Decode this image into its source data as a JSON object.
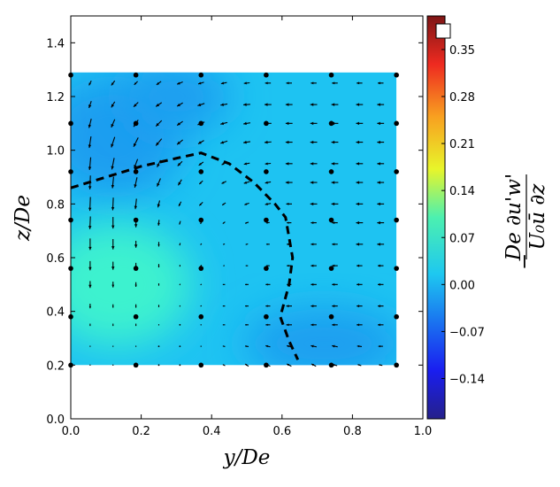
{
  "chart_data": {
    "type": "contour+quiver",
    "xlabel": "y/De",
    "ylabel": "z/De",
    "xlim": [
      0,
      1.0
    ],
    "ylim": [
      0,
      1.5
    ],
    "xticks": [
      "0.0",
      "0.2",
      "0.4",
      "0.6",
      "0.8",
      "1.0"
    ],
    "yticks": [
      "0.0",
      "0.2",
      "0.4",
      "0.6",
      "0.8",
      "1.0",
      "1.2",
      "1.4"
    ],
    "colorbar": {
      "label_numerator": "De ∂u'w'",
      "label_denominator": "U₀ū  ∂z",
      "label_sign": "−",
      "colormap": "jet",
      "clim": [
        -0.2,
        0.4
      ],
      "ticks": [
        "0.35",
        "0.28",
        "0.21",
        "0.14",
        "0.07",
        "0.00",
        "−0.07",
        "−0.14"
      ],
      "tick_values": [
        0.35,
        0.28,
        0.21,
        0.14,
        0.07,
        0.0,
        -0.07,
        -0.14
      ]
    },
    "field_extent": {
      "x": [
        0,
        0.925
      ],
      "z": [
        0.2,
        1.29
      ]
    },
    "field_colors": {
      "base": "#1ec3f2",
      "low": "#1a9ef0",
      "high": "#3cf2cf"
    },
    "measurement_points": {
      "x": [
        0,
        0.185,
        0.37,
        0.555,
        0.74,
        0.925
      ],
      "z": [
        1.28,
        1.1,
        0.92,
        0.74,
        0.56,
        0.38,
        0.2
      ]
    },
    "quiver": {
      "x": [
        0.055,
        0.12,
        0.185,
        0.25,
        0.31,
        0.37,
        0.435,
        0.5,
        0.56,
        0.62,
        0.69,
        0.75,
        0.82,
        0.88
      ],
      "z": [
        1.25,
        1.17,
        1.1,
        1.03,
        0.95,
        0.88,
        0.8,
        0.73,
        0.65,
        0.57,
        0.5,
        0.42,
        0.35,
        0.27,
        0.2
      ],
      "u": [
        [
          -0.2,
          -0.3,
          -0.3,
          -0.4,
          -0.5,
          -0.5,
          -0.5,
          -0.5,
          -0.5,
          -0.5,
          -0.5,
          -0.5,
          -0.5,
          -0.5
        ],
        [
          -0.2,
          -0.3,
          -0.4,
          -0.5,
          -0.5,
          -0.6,
          -0.6,
          -0.6,
          -0.6,
          -0.6,
          -0.6,
          -0.6,
          -0.6,
          -0.6
        ],
        [
          -0.2,
          -0.3,
          -0.4,
          -0.5,
          -0.5,
          -0.6,
          -0.6,
          -0.6,
          -0.6,
          -0.6,
          -0.6,
          -0.6,
          -0.6,
          -0.6
        ],
        [
          -0.15,
          -0.3,
          -0.4,
          -0.5,
          -0.5,
          -0.5,
          -0.6,
          -0.6,
          -0.6,
          -0.6,
          -0.6,
          -0.6,
          -0.6,
          -0.6
        ],
        [
          -0.1,
          -0.2,
          -0.3,
          -0.3,
          -0.4,
          -0.4,
          -0.4,
          -0.5,
          -0.5,
          -0.6,
          -0.6,
          -0.6,
          -0.6,
          -0.6
        ],
        [
          -0.05,
          -0.1,
          -0.2,
          -0.3,
          -0.3,
          -0.3,
          -0.4,
          -0.5,
          -0.5,
          -0.6,
          -0.6,
          -0.6,
          -0.6,
          -0.6
        ],
        [
          -0.05,
          -0.05,
          -0.1,
          -0.15,
          -0.2,
          -0.3,
          -0.3,
          -0.4,
          -0.5,
          -0.5,
          -0.6,
          -0.6,
          -0.6,
          -0.6
        ],
        [
          -0.05,
          0,
          0,
          -0.05,
          -0.1,
          -0.1,
          -0.2,
          -0.3,
          -0.3,
          -0.4,
          -0.5,
          -0.5,
          -0.6,
          -0.6
        ],
        [
          0,
          0,
          0,
          0,
          -0.05,
          -0.1,
          -0.15,
          -0.2,
          -0.3,
          -0.4,
          -0.5,
          -0.5,
          -0.6,
          -0.6
        ],
        [
          0,
          0,
          0,
          0,
          0,
          -0.1,
          -0.1,
          -0.2,
          -0.3,
          -0.4,
          -0.5,
          -0.5,
          -0.5,
          -0.5
        ],
        [
          0,
          0,
          0,
          0,
          -0.05,
          -0.1,
          -0.2,
          -0.3,
          -0.4,
          -0.4,
          -0.5,
          -0.5,
          -0.5,
          -0.5
        ],
        [
          0,
          0,
          0,
          0,
          -0.05,
          -0.1,
          -0.2,
          -0.3,
          -0.4,
          -0.5,
          -0.5,
          -0.5,
          -0.5,
          -0.5
        ],
        [
          0,
          0,
          0,
          0,
          -0.05,
          -0.1,
          -0.2,
          -0.3,
          -0.4,
          -0.5,
          -0.5,
          -0.5,
          -0.5,
          -0.5
        ],
        [
          0,
          0,
          0,
          0,
          -0.05,
          -0.1,
          -0.2,
          -0.3,
          -0.4,
          -0.4,
          -0.5,
          -0.5,
          -0.4,
          -0.4
        ],
        [
          0,
          0,
          0,
          0,
          -0.05,
          -0.1,
          -0.2,
          -0.3,
          -0.4,
          -0.4,
          -0.4,
          -0.4,
          -0.3,
          -0.3
        ]
      ],
      "v": [
        [
          -0.4,
          -0.4,
          -0.3,
          -0.3,
          -0.2,
          -0.15,
          -0.1,
          -0.05,
          0,
          0,
          0,
          0,
          0,
          0
        ],
        [
          -0.6,
          -0.5,
          -0.4,
          -0.35,
          -0.3,
          -0.2,
          -0.1,
          -0.05,
          0,
          0,
          0,
          0,
          0,
          0
        ],
        [
          -0.8,
          -0.7,
          -0.6,
          -0.5,
          -0.35,
          -0.25,
          -0.15,
          -0.1,
          0,
          0,
          0,
          0,
          0,
          0
        ],
        [
          -1.0,
          -0.9,
          -0.8,
          -0.6,
          -0.4,
          -0.3,
          -0.2,
          -0.1,
          -0.05,
          0,
          0,
          0,
          0,
          0
        ],
        [
          -1.1,
          -1.0,
          -0.8,
          -0.6,
          -0.4,
          -0.3,
          -0.2,
          -0.1,
          -0.05,
          0,
          0,
          0,
          0,
          0
        ],
        [
          -1.2,
          -1.0,
          -0.9,
          -0.7,
          -0.5,
          -0.3,
          -0.2,
          -0.15,
          -0.1,
          0,
          0,
          0,
          0,
          0
        ],
        [
          -1.2,
          -1.1,
          -0.9,
          -0.6,
          -0.4,
          -0.3,
          -0.2,
          -0.15,
          -0.1,
          0,
          0,
          0,
          0,
          0
        ],
        [
          -1.1,
          -1.0,
          -0.8,
          -0.5,
          -0.3,
          -0.2,
          -0.15,
          -0.1,
          -0.05,
          0,
          0,
          0,
          0,
          0
        ],
        [
          -1.0,
          -0.9,
          -0.6,
          -0.4,
          -0.2,
          -0.1,
          -0.05,
          -0.05,
          0,
          0,
          0,
          0,
          0,
          0
        ],
        [
          -0.8,
          -0.7,
          -0.5,
          -0.3,
          -0.15,
          -0.1,
          -0.05,
          0,
          0,
          0,
          0,
          0,
          0,
          0
        ],
        [
          -0.6,
          -0.5,
          -0.4,
          -0.2,
          -0.1,
          -0.05,
          0,
          0,
          0,
          0,
          0,
          0,
          0,
          0
        ],
        [
          -0.4,
          -0.3,
          -0.3,
          -0.2,
          -0.1,
          -0.05,
          0,
          0,
          0,
          0,
          0,
          0,
          0,
          0
        ],
        [
          -0.2,
          -0.2,
          -0.2,
          -0.1,
          -0.05,
          0,
          0,
          0,
          0,
          0,
          0,
          0,
          0,
          0
        ],
        [
          -0.1,
          -0.1,
          -0.1,
          -0.05,
          0,
          0,
          0.05,
          0.05,
          0.1,
          0.1,
          0.1,
          0.1,
          0.05,
          0
        ],
        [
          -0.1,
          -0.1,
          -0.05,
          0,
          0,
          0.05,
          0.1,
          0.2,
          0.2,
          0.2,
          0.2,
          0.1,
          0.1,
          0.05
        ]
      ]
    },
    "dashed_curve": {
      "x": [
        0,
        0.1,
        0.2,
        0.3,
        0.37,
        0.45,
        0.52,
        0.58,
        0.61,
        0.63,
        0.62,
        0.595,
        0.62,
        0.645
      ],
      "z": [
        0.86,
        0.9,
        0.94,
        0.97,
        0.99,
        0.95,
        0.88,
        0.8,
        0.75,
        0.6,
        0.5,
        0.38,
        0.29,
        0.22
      ]
    },
    "grid": false
  }
}
